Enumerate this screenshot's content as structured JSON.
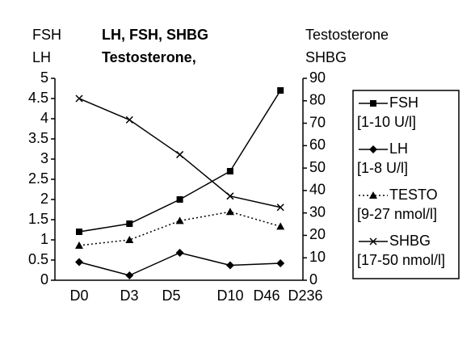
{
  "chart_data": {
    "type": "line",
    "title": [
      "LH, FSH, SHBG",
      "Testosterone,"
    ],
    "y_label": [
      "FSH",
      "LH"
    ],
    "y2_label": [
      "Testosterone",
      "SHBG"
    ],
    "categories": [
      "D0",
      "D3",
      "D5",
      "D10",
      "D46",
      "D236"
    ],
    "ylim": [
      0,
      5
    ],
    "yticks": [
      0,
      0.5,
      1,
      1.5,
      2,
      2.5,
      3,
      3.5,
      4,
      4.5,
      5
    ],
    "y2lim": [
      0,
      90
    ],
    "y2ticks": [
      0,
      10,
      20,
      30,
      40,
      50,
      60,
      70,
      80,
      90
    ],
    "grid": false,
    "series": [
      {
        "name": "FSH",
        "range": "[1-10 U/l]",
        "color": "#000000",
        "marker": "square",
        "dash": false,
        "values": [
          1.2,
          1.4,
          2.0,
          2.7,
          4.7,
          null
        ]
      },
      {
        "name": "LH",
        "range": "[1-8 U/l]",
        "color": "#000000",
        "marker": "diamond",
        "dash": false,
        "values": [
          0.45,
          0.12,
          0.68,
          0.37,
          0.42,
          null
        ]
      },
      {
        "name": "TESTO",
        "range": "[9-27 nmol/l]",
        "color": "#000000",
        "marker": "triangle",
        "dash": true,
        "axis": "y2",
        "values": [
          15.5,
          18,
          26.5,
          30.5,
          24,
          null
        ]
      },
      {
        "name": "SHBG",
        "range": "[17-50 nmol/l]",
        "color": "#000000",
        "marker": "x",
        "dash": false,
        "axis": "y2",
        "values": [
          81,
          71.5,
          56,
          37.5,
          32.5,
          null
        ]
      }
    ]
  }
}
